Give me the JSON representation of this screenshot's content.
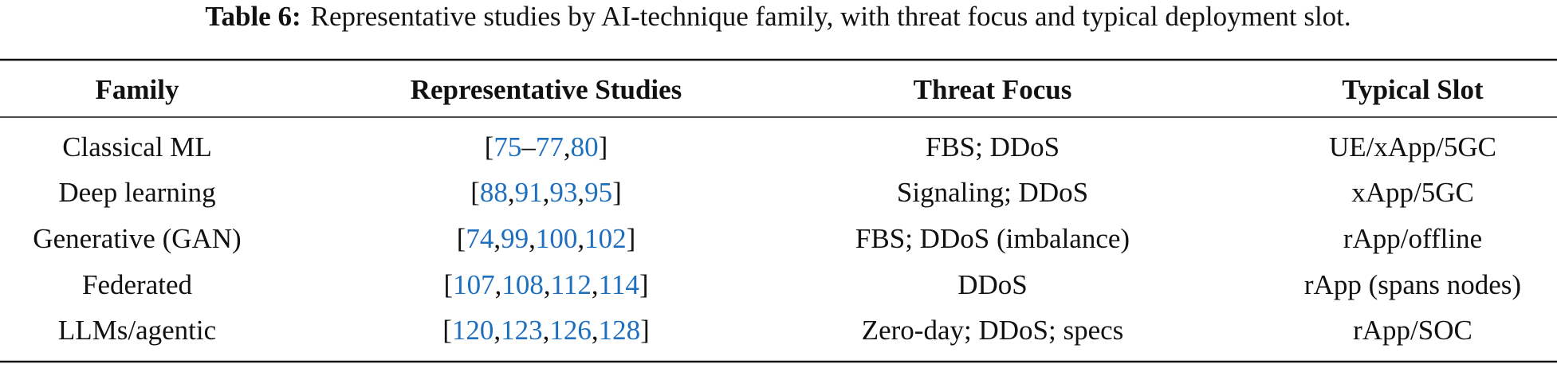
{
  "caption": {
    "label": "Table 6:",
    "text": "Representative studies by AI-technique family, with threat focus and typical deployment slot."
  },
  "table": {
    "columns": [
      "Family",
      "Representative Studies",
      "Threat Focus",
      "Typical Slot"
    ],
    "rows": [
      [
        "Classical ML",
        [
          "[",
          "75",
          "–",
          "77",
          ",",
          "80",
          "]"
        ],
        "FBS; DDoS",
        "UE/xApp/5GC"
      ],
      [
        "Deep learning",
        [
          "[",
          "88",
          ",",
          "91",
          ",",
          "93",
          ",",
          "95",
          "]"
        ],
        "Signaling; DDoS",
        "xApp/5GC"
      ],
      [
        "Generative (GAN)",
        [
          "[",
          "74",
          ",",
          "99",
          ",",
          "100",
          ",",
          "102",
          "]"
        ],
        "FBS; DDoS (imbalance)",
        "rApp/offline"
      ],
      [
        "Federated",
        [
          "[",
          "107",
          ",",
          "108",
          ",",
          "112",
          ",",
          "114",
          "]"
        ],
        "DDoS",
        "rApp (spans nodes)"
      ],
      [
        "LLMs/agentic",
        [
          "[",
          "120",
          ",",
          "123",
          ",",
          "126",
          ",",
          "128",
          "]"
        ],
        "Zero-day; DDoS; specs",
        "rApp/SOC"
      ]
    ]
  }
}
